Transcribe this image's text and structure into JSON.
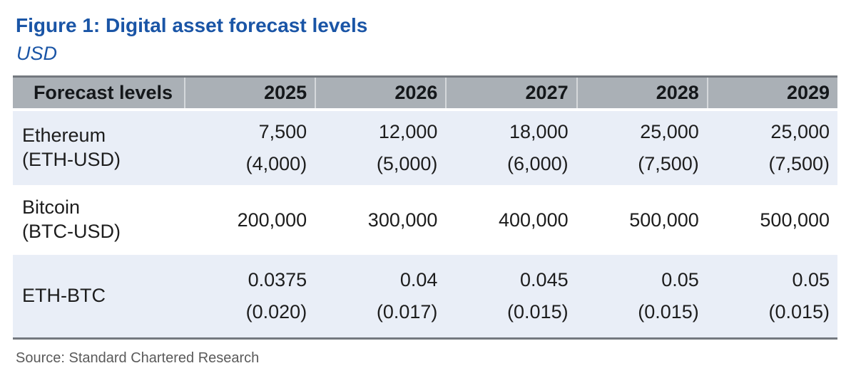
{
  "figure": {
    "title": "Figure 1: Digital asset forecast levels",
    "subtitle": "USD",
    "source": "Source: Standard Chartered Research"
  },
  "table": {
    "columns": [
      "Forecast levels",
      "2025",
      "2026",
      "2027",
      "2028",
      "2029"
    ],
    "rows": [
      {
        "label_line1": "Ethereum",
        "label_line2": "(ETH-USD)",
        "values": [
          "7,500",
          "12,000",
          "18,000",
          "25,000",
          "25,000"
        ],
        "subs": [
          "(4,000)",
          "(5,000)",
          "(6,000)",
          "(7,500)",
          "(7,500)"
        ]
      },
      {
        "label_line1": "Bitcoin",
        "label_line2": "(BTC-USD)",
        "values": [
          "200,000",
          "300,000",
          "400,000",
          "500,000",
          "500,000"
        ]
      },
      {
        "label_line1": "ETH-BTC",
        "values": [
          "0.0375",
          "0.04",
          "0.045",
          "0.05",
          "0.05"
        ],
        "subs": [
          "(0.020)",
          "(0.017)",
          "(0.015)",
          "(0.015)",
          "(0.015)"
        ]
      }
    ]
  },
  "colors": {
    "accent_blue": "#1a55a6",
    "header_gray": "#aab0b6",
    "row_light_blue": "#e9eef7",
    "border_gray": "#74797f",
    "text_black": "#1d1d1d",
    "source_gray": "#5a5a5a"
  }
}
